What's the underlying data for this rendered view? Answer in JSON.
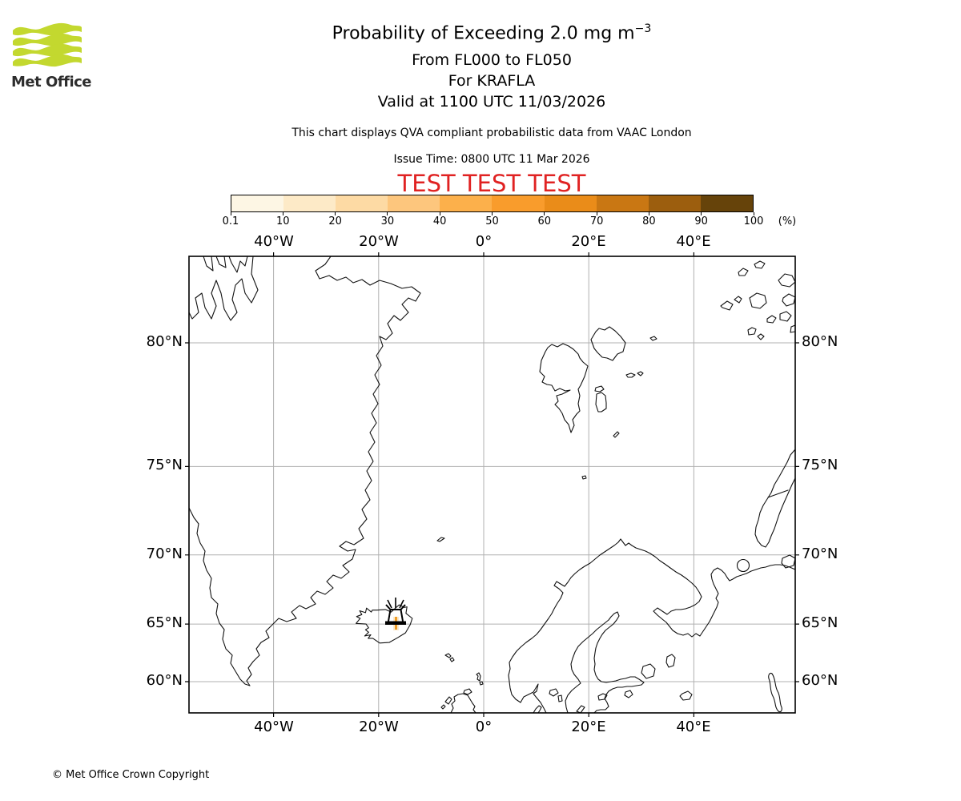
{
  "header": {
    "logo_text": "Met Office",
    "logo_green": "#c3d82f",
    "title_main": "Probability of Exceeding 2.0 mg m",
    "title_exponent": "−3",
    "subtitle_levels": "From FL000 to FL050",
    "subtitle_volcano": "For KRAFLA",
    "subtitle_valid": "Valid at 1100 UTC 11/03/2026",
    "note": "This chart displays QVA compliant probabilistic data from VAAC London",
    "issue_time": "Issue Time: 0800 UTC 11 Mar 2026",
    "test_banner": "TEST TEST TEST",
    "test_color": "#e02222"
  },
  "colorbar": {
    "tick_labels": [
      "0.1",
      "10",
      "20",
      "30",
      "40",
      "50",
      "60",
      "70",
      "80",
      "90",
      "100"
    ],
    "unit_label": "(%)",
    "segment_colors": [
      "#fdf6e4",
      "#fdeac7",
      "#fddaa4",
      "#fdc67d",
      "#fcb04b",
      "#f99c2c",
      "#ea8c19",
      "#c97713",
      "#9c5e0e",
      "#66430a"
    ]
  },
  "map": {
    "top_labels": [
      "40°W",
      "20°W",
      "0°",
      "20°E",
      "40°E"
    ],
    "bottom_labels": [
      "40°W",
      "20°W",
      "0°",
      "20°E",
      "40°E"
    ],
    "left_labels": [
      "80°N",
      "75°N",
      "70°N",
      "65°N",
      "60°N"
    ],
    "right_labels": [
      "80°N",
      "75°N",
      "70°N",
      "65°N",
      "60°N"
    ],
    "volcano_name": "KRAFLA",
    "plume_color": "#f09d27",
    "plume_halo_color": "#f8d9a2",
    "gridline_color": "#b0b0b0",
    "coast_color": "#111111"
  },
  "footer": {
    "copyright": "© Met Office Crown Copyright"
  },
  "chart_data": {
    "type": "probability-exceedance-map",
    "title": "Probability of Exceeding 2.0 mg m^-3",
    "flight_levels": "FL000 to FL050",
    "volcano": "KRAFLA",
    "volcano_location": {
      "lat_deg_n": 65.7,
      "lon_deg_e": -16.75
    },
    "valid_time": "1100 UTC 11/03/2026",
    "issue_time": "0800 UTC 11 Mar 2026",
    "source": "VAAC London",
    "probability_scale_percent": [
      0.1,
      10,
      20,
      30,
      40,
      50,
      60,
      70,
      80,
      90,
      100
    ],
    "projection": "mercator",
    "map_extent": {
      "lon_min": -56,
      "lon_max": 59.3,
      "lat_min": 56.9,
      "lat_max": 82.5
    },
    "graticule_lons_deg": [
      -40,
      -20,
      0,
      20,
      40
    ],
    "graticule_lats_deg": [
      80,
      75,
      70,
      65,
      60
    ],
    "plume": {
      "description": "Very small streak of lowest-bin exceedance probability extending just south of the Krafla volcano symbol in northern Iceland",
      "probability_bin_percent": [
        0.1,
        10
      ]
    }
  }
}
